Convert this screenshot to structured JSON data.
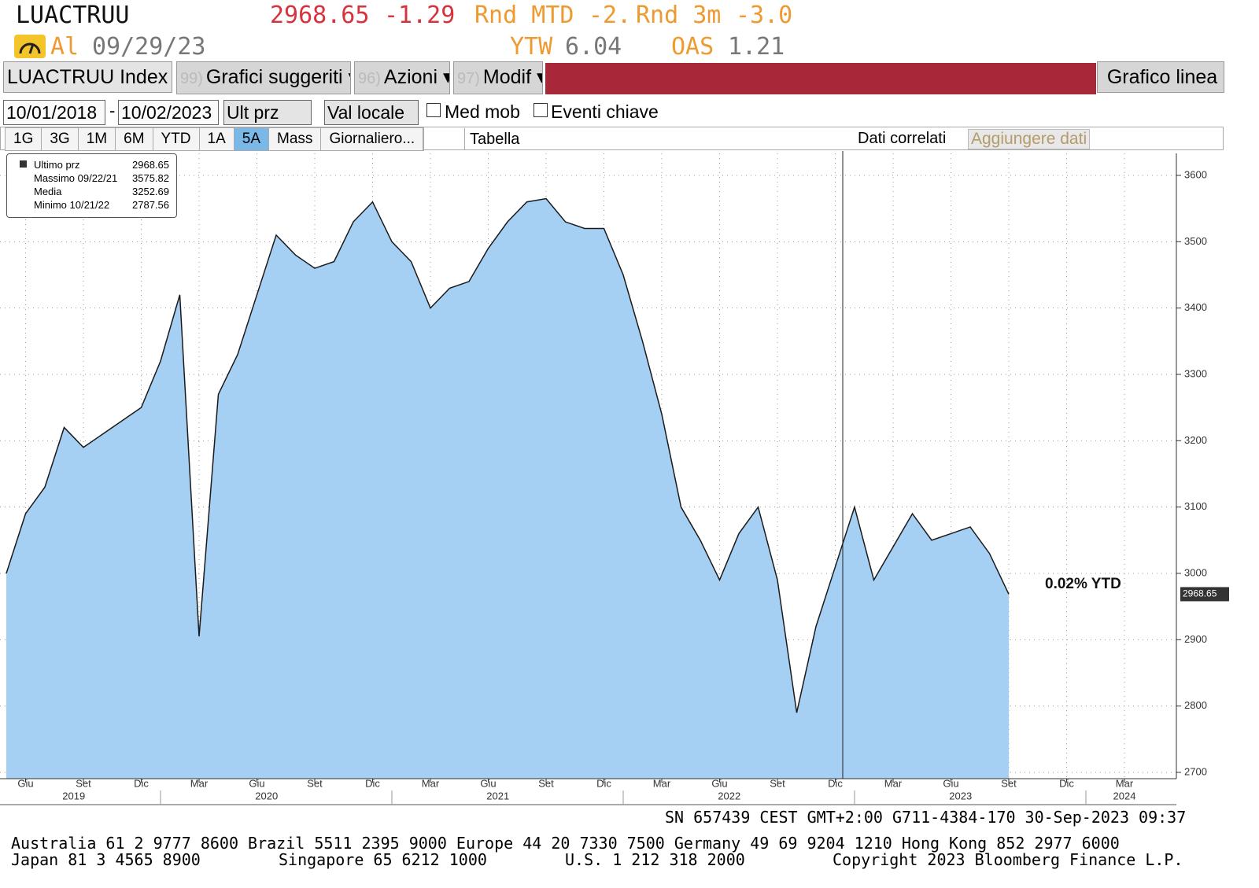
{
  "header": {
    "ticker": "LUACTRUU",
    "price": "2968.65",
    "change": "-1.29",
    "mtd_label": "Rnd MTD",
    "mtd_value": "-2.",
    "m3_label": "Rnd 3m",
    "m3_value": "-3.0",
    "as_of_label": "Al",
    "as_of_date": "09/29/23",
    "ytw_label": "YTW",
    "ytw_value": "6.04",
    "oas_label": "OAS",
    "oas_value": "1.21"
  },
  "toolbar": {
    "security": "LUACTRUU Index",
    "menus": [
      {
        "num": "99)",
        "label": "Grafici suggeriti"
      },
      {
        "num": "96)",
        "label": "Azioni"
      },
      {
        "num": "97)",
        "label": "Modif"
      }
    ],
    "chart_type": "Grafico linea",
    "start_date": "10/01/2018",
    "date_sep": "-",
    "end_date": "10/02/2023",
    "field": "Ult prz",
    "currency": "Val locale",
    "moving_avg": "Med mob",
    "key_events": "Eventi chiave",
    "periods": [
      "1G",
      "3G",
      "1M",
      "6M",
      "YTD",
      "1A",
      "5A",
      "Mass"
    ],
    "frequency": "Giornaliero...",
    "table": "Tabella",
    "related": "Dati correlati",
    "add_data": "Aggiungere dati"
  },
  "chart_data": {
    "type": "area",
    "x": [
      "2019-05",
      "2019-06",
      "2019-07",
      "2019-08",
      "2019-09",
      "2019-10",
      "2019-11",
      "2019-12",
      "2020-01",
      "2020-02",
      "2020-03",
      "2020-04",
      "2020-05",
      "2020-06",
      "2020-07",
      "2020-08",
      "2020-09",
      "2020-10",
      "2020-11",
      "2020-12",
      "2021-01",
      "2021-02",
      "2021-03",
      "2021-04",
      "2021-05",
      "2021-06",
      "2021-07",
      "2021-08",
      "2021-09",
      "2021-10",
      "2021-11",
      "2021-12",
      "2022-01",
      "2022-02",
      "2022-03",
      "2022-04",
      "2022-05",
      "2022-06",
      "2022-07",
      "2022-08",
      "2022-09",
      "2022-10",
      "2022-11",
      "2022-12",
      "2023-01",
      "2023-02",
      "2023-03",
      "2023-04",
      "2023-05",
      "2023-06",
      "2023-07",
      "2023-08",
      "2023-09"
    ],
    "series": [
      {
        "name": "Ultimo prz",
        "color": "#a6cff4",
        "line_color": "#1a1a1a",
        "values": [
          3000,
          3090,
          3130,
          3220,
          3190,
          3210,
          3230,
          3250,
          3320,
          3420,
          2905,
          3270,
          3330,
          3420,
          3510,
          3480,
          3460,
          3470,
          3530,
          3560,
          3500,
          3470,
          3400,
          3430,
          3440,
          3490,
          3530,
          3560,
          3565,
          3530,
          3520,
          3520,
          3450,
          3350,
          3240,
          3100,
          3050,
          2990,
          3060,
          3100,
          2990,
          2790,
          2920,
          3010,
          3100,
          2990,
          3040,
          3090,
          3050,
          3060,
          3070,
          3030,
          2968.65
        ]
      }
    ],
    "legend_stats": [
      {
        "label": "Massimo 09/22/21",
        "value": 3575.82
      },
      {
        "label": "Media",
        "value": 3252.69
      },
      {
        "label": "Minimo 10/21/22",
        "value": 2787.56
      }
    ],
    "annotation": "0.02% YTD",
    "xlim": [
      "2019-05",
      "2024-05"
    ],
    "xticks": [
      {
        "value": "2019-06",
        "label": "Giu"
      },
      {
        "value": "2019-09",
        "label": "Set"
      },
      {
        "value": "2019-12",
        "label": "Dic"
      },
      {
        "value": "2020-03",
        "label": "Mar"
      },
      {
        "value": "2020-06",
        "label": "Giu"
      },
      {
        "value": "2020-09",
        "label": "Set"
      },
      {
        "value": "2020-12",
        "label": "Dic"
      },
      {
        "value": "2021-03",
        "label": "Mar"
      },
      {
        "value": "2021-06",
        "label": "Giu"
      },
      {
        "value": "2021-09",
        "label": "Set"
      },
      {
        "value": "2021-12",
        "label": "Dic"
      },
      {
        "value": "2022-03",
        "label": "Mar"
      },
      {
        "value": "2022-06",
        "label": "Giu"
      },
      {
        "value": "2022-09",
        "label": "Set"
      },
      {
        "value": "2022-12",
        "label": "Dic"
      },
      {
        "value": "2023-03",
        "label": "Mar"
      },
      {
        "value": "2023-06",
        "label": "Giu"
      },
      {
        "value": "2023-09",
        "label": "Set"
      },
      {
        "value": "2023-12",
        "label": "Dic"
      },
      {
        "value": "2024-03",
        "label": "Mar"
      }
    ],
    "x_year_labels": [
      "2019",
      "2020",
      "2021",
      "2022",
      "2023",
      "2024"
    ],
    "ylim": [
      2700,
      3600
    ],
    "yticks": [
      2700,
      2800,
      2900,
      3000,
      3100,
      3200,
      3300,
      3400,
      3500,
      3600
    ],
    "grid": true
  },
  "footer": {
    "session": "SN 657439 CEST GMT+2:00 G711-4384-170 30-Sep-2023 09:37",
    "phones": "Australia 61 2 9777 8600 Brazil 5511 2395 9000 Europe 44 20 7330 7500 Germany 49 69 9204 1210 Hong Kong 852 2977 6000",
    "phones2": [
      "Japan 81 3 4565 8900",
      "Singapore 65 6212 1000",
      "U.S. 1 212 318 2000",
      "Copyright 2023 Bloomberg Finance L.P."
    ]
  }
}
